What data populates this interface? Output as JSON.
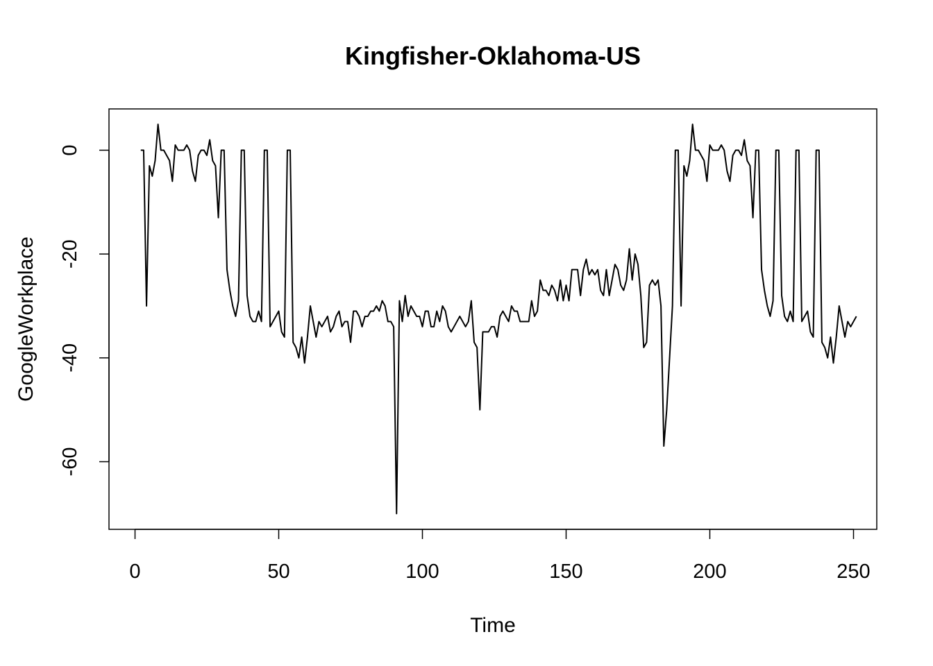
{
  "chart_data": {
    "type": "line",
    "title": "Kingfisher-Oklahoma-US",
    "xlabel": "Time",
    "ylabel": "GoogleWorkplace",
    "xlim": [
      0,
      250
    ],
    "ylim": [
      -70,
      5
    ],
    "x_ticks": [
      0,
      50,
      100,
      150,
      200,
      250
    ],
    "y_ticks": [
      0,
      -20,
      -40,
      -60
    ],
    "x_tick_labels": [
      "0",
      "50",
      "100",
      "150",
      "200",
      "250"
    ],
    "y_tick_labels": [
      "0",
      "-20",
      "-40",
      "-60"
    ],
    "grid": false,
    "legend": "none",
    "line_color": "#000000",
    "series": [
      {
        "x_start": 2,
        "values": [
          0,
          0,
          -30,
          -3,
          -5,
          -2,
          5,
          0,
          0,
          -1,
          -2,
          -6,
          1,
          0,
          0,
          0,
          1,
          0,
          -4,
          -6,
          -1,
          0,
          0,
          -1,
          2,
          -2,
          -3,
          -13,
          0,
          0,
          -23,
          -27,
          -30,
          -32,
          -29,
          0,
          0,
          -28,
          -32,
          -33,
          -33,
          -31,
          -33,
          0,
          0,
          -34,
          -33,
          -32,
          -31,
          -35,
          -36,
          0,
          0,
          -37,
          -38,
          -40,
          -36,
          -41,
          -36,
          -30,
          -33,
          -36,
          -33,
          -34,
          -33,
          -32,
          -35,
          -34,
          -32,
          -31,
          -34,
          -33,
          -33,
          -37,
          -31,
          -31,
          -32,
          -34,
          -32,
          -32,
          -31,
          -31,
          -30,
          -31,
          -29,
          -30,
          -33,
          -33,
          -34,
          -70,
          -29,
          -33,
          -28,
          -32,
          -30,
          -31,
          -32,
          -32,
          -34,
          -31,
          -31,
          -34,
          -34,
          -31,
          -33,
          -30,
          -31,
          -34,
          -35,
          -34,
          -33,
          -32,
          -33,
          -34,
          -33,
          -29,
          -37,
          -38,
          -50,
          -35,
          -35,
          -35,
          -34,
          -34,
          -36,
          -32,
          -31,
          -32,
          -33,
          -30,
          -31,
          -31,
          -33,
          -33,
          -33,
          -33,
          -29,
          -32,
          -31,
          -25,
          -27,
          -27,
          -28,
          -26,
          -27,
          -29,
          -25,
          -29,
          -26,
          -29,
          -23,
          -23,
          -23,
          -28,
          -23,
          -21,
          -24,
          -23,
          -24,
          -23,
          -27,
          -28,
          -23,
          -28,
          -25,
          -22,
          -23,
          -26,
          -27,
          -25,
          -19,
          -25,
          -20,
          -22,
          -28,
          -38,
          -37,
          -26,
          -25,
          -26,
          -25,
          -30,
          -57,
          -50,
          -40,
          -30,
          0,
          0,
          -30,
          -3,
          -5,
          -2,
          5,
          0,
          0,
          -1,
          -2,
          -6,
          1,
          0,
          0,
          0,
          1,
          0,
          -4,
          -6,
          -1,
          0,
          0,
          -1,
          2,
          -2,
          -3,
          -13,
          0,
          0,
          -23,
          -27,
          -30,
          -32,
          -29,
          0,
          0,
          -28,
          -32,
          -33,
          -31,
          -33,
          0,
          0,
          -33,
          -32,
          -31,
          -35,
          -36,
          0,
          0,
          -37,
          -38,
          -40,
          -36,
          -41,
          -36,
          -30,
          -33,
          -36,
          -33,
          -34,
          -33,
          -32
        ]
      }
    ]
  }
}
